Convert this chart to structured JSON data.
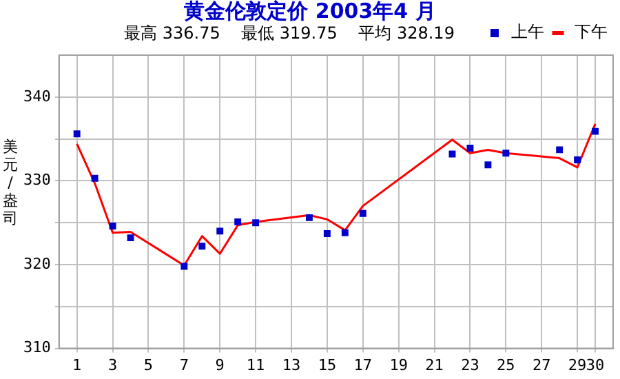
{
  "chart_data": {
    "type": "line",
    "title": "黄金伦敦定价 2003年4 月",
    "subtitle": "最高 336.75    最低 319.75    平均 328.19",
    "ylabel": "美元/盎司",
    "xlim": [
      0,
      31
    ],
    "xticks": [
      1,
      3,
      5,
      7,
      9,
      11,
      13,
      15,
      17,
      19,
      21,
      23,
      25,
      27,
      29,
      30
    ],
    "ylim": [
      310,
      345
    ],
    "yticks": [
      310,
      {
        "value": 315,
        "label": null
      },
      320,
      {
        "value": 325,
        "label": null
      },
      330,
      {
        "value": 335,
        "label": null
      },
      340
    ],
    "grid": true,
    "legend": "top right",
    "series": [
      {
        "name": "上午",
        "type": "scatter",
        "marker": "square",
        "color": "#0000cc",
        "x": [
          1,
          2,
          3,
          4,
          7,
          8,
          9,
          10,
          11,
          14,
          15,
          16,
          17,
          22,
          23,
          24,
          25,
          28,
          29,
          30
        ],
        "values": [
          335.6,
          330.3,
          324.6,
          323.2,
          319.8,
          322.2,
          324.0,
          325.1,
          325.0,
          325.6,
          323.7,
          323.8,
          326.1,
          333.2,
          333.9,
          331.9,
          333.3,
          333.7,
          332.5,
          335.9
        ]
      },
      {
        "name": "下午",
        "type": "line",
        "marker": "none",
        "line_style": "solid",
        "color": "#ff0000",
        "x": [
          1,
          2,
          3,
          4,
          7,
          8,
          9,
          10,
          11,
          14,
          15,
          16,
          17,
          22,
          23,
          24,
          25,
          28,
          29,
          30
        ],
        "values": [
          334.4,
          329.7,
          323.8,
          323.9,
          319.9,
          323.4,
          321.3,
          324.7,
          325.1,
          325.9,
          325.4,
          324.1,
          327.0,
          334.9,
          333.3,
          333.7,
          333.3,
          332.7,
          331.6,
          336.8
        ]
      }
    ]
  }
}
